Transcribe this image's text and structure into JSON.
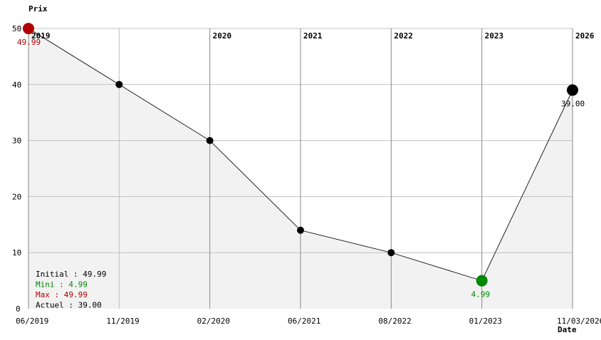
{
  "chart_data": {
    "type": "area",
    "ylabel": "Prix",
    "xlabel": "Date",
    "ylim": [
      0,
      50
    ],
    "yticks": [
      0,
      10,
      20,
      30,
      40,
      50
    ],
    "grid": true,
    "categories": [
      "06/2019",
      "11/2019",
      "02/2020",
      "06/2021",
      "08/2022",
      "01/2023",
      "11/03/2026"
    ],
    "values": [
      49.99,
      40,
      30,
      14,
      10,
      4.99,
      39
    ],
    "year_markers": [
      {
        "index": 0,
        "label": "2019"
      },
      {
        "index": 2,
        "label": "2020"
      },
      {
        "index": 3,
        "label": "2021"
      },
      {
        "index": 4,
        "label": "2022"
      },
      {
        "index": 5,
        "label": "2023"
      },
      {
        "index": 6,
        "label": "2026"
      }
    ],
    "highlights": [
      {
        "index": 0,
        "label": "49.99",
        "color": "#b30000"
      },
      {
        "index": 5,
        "label": "4.99",
        "color": "#008800"
      },
      {
        "index": 6,
        "label": "39.00",
        "color": "#000000"
      }
    ],
    "legend": [
      {
        "text": "Initial : 49.99",
        "color": "#000000"
      },
      {
        "text": "Mini : 4.99",
        "color": "#008800"
      },
      {
        "text": "Max : 49.99",
        "color": "#b30000"
      },
      {
        "text": "Actuel : 39.00",
        "color": "#000000"
      }
    ],
    "legend_placement": "bottom-left",
    "fill_color": "#f2f2f2"
  }
}
